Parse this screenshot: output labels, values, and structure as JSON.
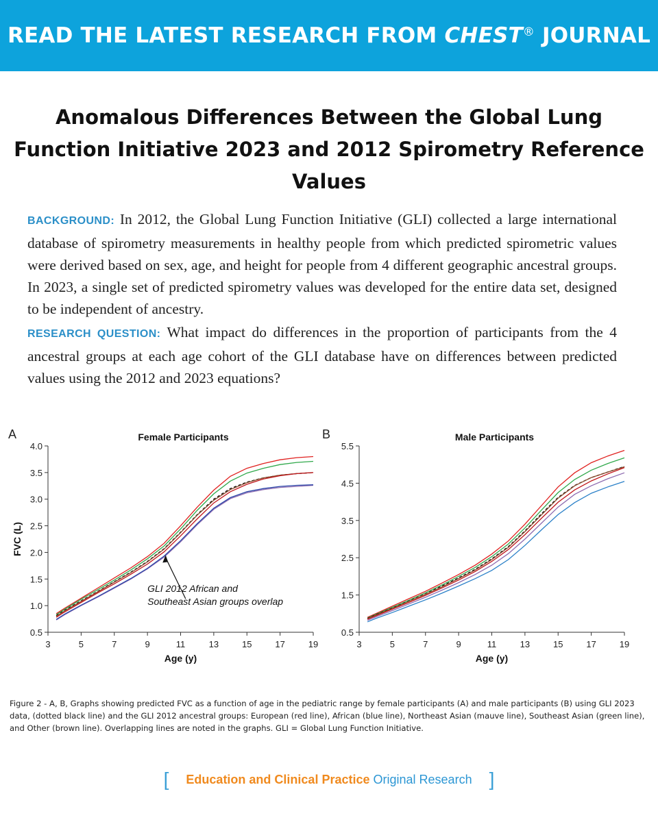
{
  "banner": {
    "prefix": "READ THE LATEST RESEARCH FROM ",
    "journal": "CHEST",
    "reg": "®",
    "suffix": " JOURNAL"
  },
  "title": "Anomalous Differences Between the Global Lung Function Initiative 2023 and 2012 Spirometry Reference Values",
  "abstract": {
    "background_label": "BACKGROUND:",
    "background_text": "In 2012, the Global Lung Function Initiative (GLI) collected a large international database of spirometry measurements in healthy people from which predicted spirometric values were derived based on sex, age, and height for people from 4 different geographic ancestral groups. In 2023, a single set of predicted spirometry values was developed for the entire data set, designed to be independent of ancestry.",
    "question_label": "RESEARCH QUESTION:",
    "question_text": "What impact do differences in the proportion of participants from the 4 ancestral groups at each age cohort of the GLI database have on differences between predicted values using the 2012 and 2023 equations?"
  },
  "chart_data": [
    {
      "panel": "A",
      "type": "line",
      "title": "Female Participants",
      "xlabel": "Age (y)",
      "ylabel": "FVC (L)",
      "xlim": [
        3,
        19
      ],
      "ylim": [
        0.5,
        4.0
      ],
      "xticks": [
        "3",
        "5",
        "7",
        "9",
        "11",
        "13",
        "15",
        "17",
        "19"
      ],
      "yticks": [
        "0.5",
        "1.0",
        "1.5",
        "2.0",
        "2.5",
        "3.0",
        "3.5",
        "4.0"
      ],
      "annotation": [
        "GLI 2012 African and",
        "Southeast Asian groups overlap"
      ],
      "annotation_arrow": {
        "from": [
          11.3,
          1.13
        ],
        "to": [
          10.1,
          1.95
        ]
      },
      "x": [
        3.5,
        4,
        5,
        6,
        7,
        8,
        9,
        10,
        11,
        12,
        13,
        14,
        15,
        16,
        17,
        18,
        19
      ],
      "series": [
        {
          "color": "#e0201e",
          "dashed": false,
          "values": [
            0.85,
            0.95,
            1.14,
            1.33,
            1.52,
            1.71,
            1.92,
            2.17,
            2.5,
            2.85,
            3.17,
            3.43,
            3.58,
            3.67,
            3.74,
            3.78,
            3.8
          ]
        },
        {
          "color": "#2fa84a",
          "dashed": false,
          "values": [
            0.83,
            0.93,
            1.12,
            1.3,
            1.48,
            1.67,
            1.88,
            2.12,
            2.44,
            2.79,
            3.1,
            3.34,
            3.49,
            3.58,
            3.65,
            3.69,
            3.71
          ]
        },
        {
          "color": "#111111",
          "dashed": true,
          "values": [
            0.81,
            0.91,
            1.09,
            1.27,
            1.45,
            1.63,
            1.83,
            2.07,
            2.38,
            2.71,
            3.0,
            3.2,
            3.32,
            3.4,
            3.45,
            3.48,
            3.5
          ]
        },
        {
          "color": "#8a4a2a",
          "dashed": false,
          "values": [
            0.8,
            0.9,
            1.08,
            1.26,
            1.44,
            1.62,
            1.82,
            2.06,
            2.37,
            2.7,
            2.98,
            3.18,
            3.31,
            3.4,
            3.45,
            3.48,
            3.5
          ]
        },
        {
          "color": "#c0151a",
          "dashed": false,
          "values": [
            0.78,
            0.88,
            1.06,
            1.24,
            1.41,
            1.59,
            1.78,
            2.01,
            2.31,
            2.63,
            2.93,
            3.14,
            3.28,
            3.38,
            3.44,
            3.48,
            3.5
          ]
        },
        {
          "color": "#8d6bb0",
          "dashed": false,
          "values": [
            0.73,
            0.83,
            1.0,
            1.16,
            1.33,
            1.5,
            1.69,
            1.91,
            2.2,
            2.52,
            2.81,
            3.01,
            3.12,
            3.18,
            3.22,
            3.24,
            3.26
          ]
        },
        {
          "color": "#2b46a8",
          "dashed": false,
          "values": [
            0.74,
            0.84,
            1.01,
            1.17,
            1.34,
            1.51,
            1.7,
            1.93,
            2.22,
            2.54,
            2.83,
            3.03,
            3.14,
            3.2,
            3.24,
            3.26,
            3.27
          ]
        }
      ]
    },
    {
      "panel": "B",
      "type": "line",
      "title": "Male Participants",
      "xlabel": "Age (y)",
      "ylabel": "",
      "xlim": [
        3,
        19
      ],
      "ylim": [
        0.5,
        5.5
      ],
      "xticks": [
        "3",
        "5",
        "7",
        "9",
        "11",
        "13",
        "15",
        "17",
        "19"
      ],
      "yticks": [
        "0.5",
        "1.5",
        "2.5",
        "3.5",
        "4.5",
        "5.5"
      ],
      "x": [
        3.5,
        4,
        5,
        6,
        7,
        8,
        9,
        10,
        11,
        12,
        13,
        14,
        15,
        16,
        17,
        18,
        19
      ],
      "series": [
        {
          "color": "#e0201e",
          "dashed": false,
          "values": [
            0.9,
            1.0,
            1.2,
            1.4,
            1.6,
            1.82,
            2.05,
            2.3,
            2.6,
            2.95,
            3.4,
            3.9,
            4.4,
            4.78,
            5.05,
            5.23,
            5.38
          ]
        },
        {
          "color": "#2fa84a",
          "dashed": false,
          "values": [
            0.88,
            0.98,
            1.17,
            1.36,
            1.56,
            1.77,
            2.0,
            2.24,
            2.53,
            2.87,
            3.3,
            3.78,
            4.25,
            4.6,
            4.85,
            5.03,
            5.18
          ]
        },
        {
          "color": "#111111",
          "dashed": true,
          "values": [
            0.87,
            0.97,
            1.15,
            1.34,
            1.53,
            1.74,
            1.96,
            2.19,
            2.47,
            2.8,
            3.22,
            3.68,
            4.12,
            4.44,
            4.65,
            4.8,
            4.95
          ]
        },
        {
          "color": "#8a4a2a",
          "dashed": false,
          "values": [
            0.86,
            0.96,
            1.14,
            1.33,
            1.52,
            1.72,
            1.94,
            2.17,
            2.45,
            2.78,
            3.2,
            3.65,
            4.1,
            4.43,
            4.65,
            4.8,
            4.94
          ]
        },
        {
          "color": "#c0151a",
          "dashed": false,
          "values": [
            0.85,
            0.94,
            1.12,
            1.3,
            1.49,
            1.69,
            1.9,
            2.13,
            2.4,
            2.72,
            3.12,
            3.56,
            3.99,
            4.32,
            4.56,
            4.75,
            4.92
          ]
        },
        {
          "color": "#8d6bb0",
          "dashed": false,
          "values": [
            0.82,
            0.91,
            1.08,
            1.26,
            1.44,
            1.63,
            1.83,
            2.05,
            2.3,
            2.61,
            3.0,
            3.43,
            3.86,
            4.2,
            4.43,
            4.62,
            4.78
          ]
        },
        {
          "color": "#2a80c8",
          "dashed": false,
          "values": [
            0.78,
            0.87,
            1.03,
            1.2,
            1.37,
            1.55,
            1.74,
            1.94,
            2.16,
            2.45,
            2.83,
            3.25,
            3.66,
            3.98,
            4.23,
            4.4,
            4.55
          ]
        }
      ]
    }
  ],
  "caption": "Figure 2 - A, B, Graphs showing predicted FVC as a function of age in the pediatric range by female participants (A) and male participants (B) using GLI 2023 data, (dotted black line) and the GLI 2012 ancestral groups: European (red line), African (blue line), Northeast Asian (mauve line), Southeast Asian (green line), and Other (brown line). Overlapping lines are noted in the graphs. GLI = Global Lung Function Initiative.",
  "footer": {
    "bracket_open": "[",
    "section": "Education and Clinical Practice",
    "type": "Original Research",
    "bracket_close": "]"
  },
  "colors": {
    "banner": "#0da3dc",
    "label_blue": "#2b8fc8",
    "footer_orange": "#f08a1e"
  }
}
